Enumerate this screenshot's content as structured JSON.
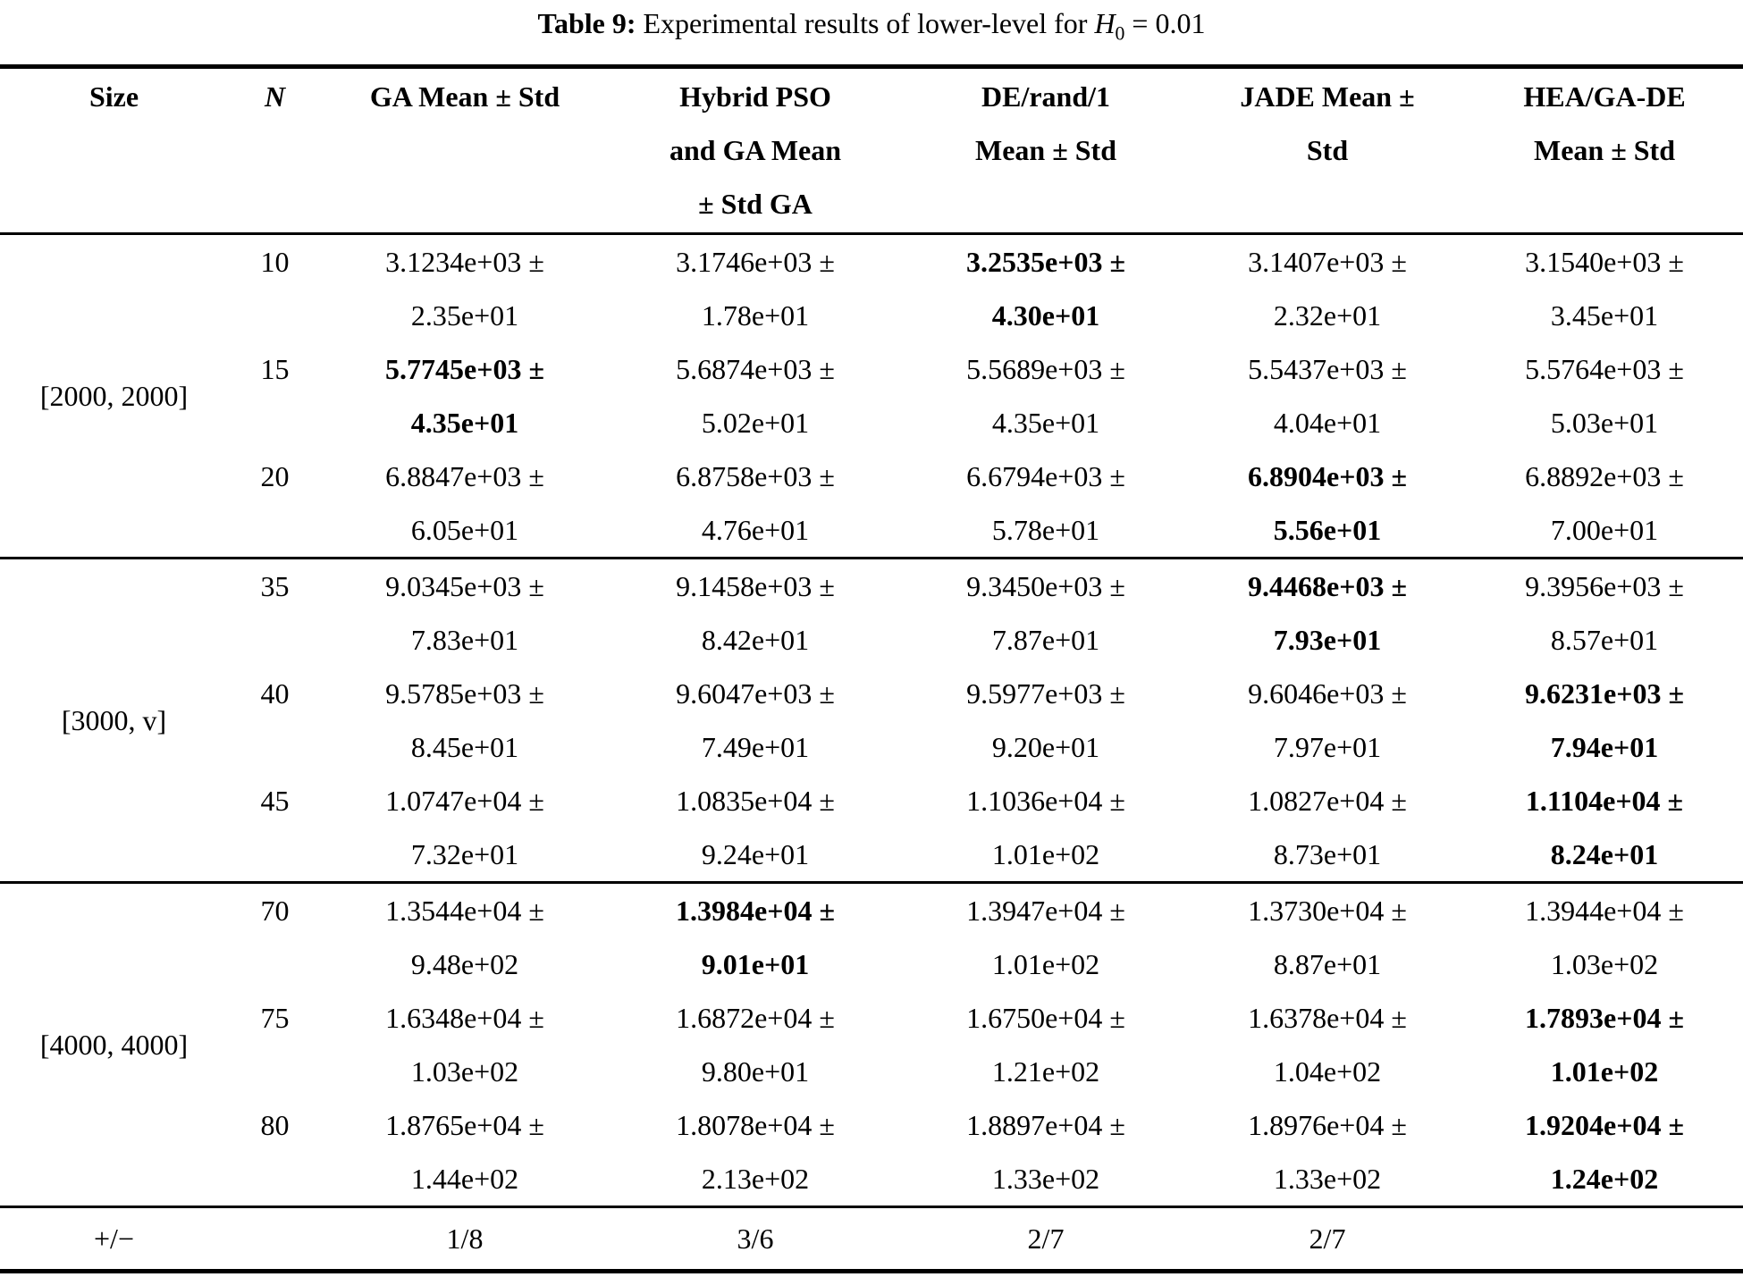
{
  "title": {
    "prefix": "Table 9: ",
    "body": "Experimental results of lower-level for ",
    "math_var": "H",
    "math_sub": "0",
    "suffix": " = 0.01"
  },
  "table": {
    "pm_symbol": "±",
    "columns": [
      {
        "key": "size",
        "lines": [
          "Size"
        ],
        "italic": false
      },
      {
        "key": "n",
        "lines": [
          "N"
        ],
        "italic": true
      },
      {
        "key": "ga",
        "lines": [
          "GA Mean ± Std"
        ],
        "italic": false
      },
      {
        "key": "hybrid-pso-ga",
        "lines": [
          "Hybrid PSO",
          "and GA Mean",
          "± Std GA"
        ],
        "italic": false
      },
      {
        "key": "de-rand-1",
        "lines": [
          "DE/rand/1",
          "Mean ± Std"
        ],
        "italic": false
      },
      {
        "key": "jade",
        "lines": [
          "JADE Mean ±",
          "Std"
        ],
        "italic": false
      },
      {
        "key": "hea-ga-de",
        "lines": [
          "HEA/GA-DE",
          "Mean ± Std"
        ],
        "italic": false
      }
    ],
    "groups": [
      {
        "size": "[2000, 2000]",
        "rows": [
          {
            "n": "10",
            "cells": [
              {
                "mean": "3.1234e+03",
                "std": "2.35e+01",
                "bold": false
              },
              {
                "mean": "3.1746e+03",
                "std": "1.78e+01",
                "bold": false
              },
              {
                "mean": "3.2535e+03",
                "std": "4.30e+01",
                "bold": true
              },
              {
                "mean": "3.1407e+03",
                "std": "2.32e+01",
                "bold": false
              },
              {
                "mean": "3.1540e+03",
                "std": "3.45e+01",
                "bold": false
              }
            ]
          },
          {
            "n": "15",
            "cells": [
              {
                "mean": "5.7745e+03",
                "std": "4.35e+01",
                "bold": true
              },
              {
                "mean": "5.6874e+03",
                "std": "5.02e+01",
                "bold": false
              },
              {
                "mean": "5.5689e+03",
                "std": "4.35e+01",
                "bold": false
              },
              {
                "mean": "5.5437e+03",
                "std": "4.04e+01",
                "bold": false
              },
              {
                "mean": "5.5764e+03",
                "std": "5.03e+01",
                "bold": false
              }
            ]
          },
          {
            "n": "20",
            "cells": [
              {
                "mean": "6.8847e+03",
                "std": "6.05e+01",
                "bold": false
              },
              {
                "mean": "6.8758e+03",
                "std": "4.76e+01",
                "bold": false
              },
              {
                "mean": "6.6794e+03",
                "std": "5.78e+01",
                "bold": false
              },
              {
                "mean": "6.8904e+03",
                "std": "5.56e+01",
                "bold": true
              },
              {
                "mean": "6.8892e+03",
                "std": "7.00e+01",
                "bold": false
              }
            ]
          }
        ]
      },
      {
        "size": "[3000, v]",
        "rows": [
          {
            "n": "35",
            "cells": [
              {
                "mean": "9.0345e+03",
                "std": "7.83e+01",
                "bold": false
              },
              {
                "mean": "9.1458e+03",
                "std": "8.42e+01",
                "bold": false
              },
              {
                "mean": "9.3450e+03",
                "std": "7.87e+01",
                "bold": false
              },
              {
                "mean": "9.4468e+03",
                "std": "7.93e+01",
                "bold": true
              },
              {
                "mean": "9.3956e+03",
                "std": "8.57e+01",
                "bold": false
              }
            ]
          },
          {
            "n": "40",
            "cells": [
              {
                "mean": "9.5785e+03",
                "std": "8.45e+01",
                "bold": false
              },
              {
                "mean": "9.6047e+03",
                "std": "7.49e+01",
                "bold": false
              },
              {
                "mean": "9.5977e+03",
                "std": "9.20e+01",
                "bold": false
              },
              {
                "mean": "9.6046e+03",
                "std": "7.97e+01",
                "bold": false
              },
              {
                "mean": "9.6231e+03",
                "std": "7.94e+01",
                "bold": true
              }
            ]
          },
          {
            "n": "45",
            "cells": [
              {
                "mean": "1.0747e+04",
                "std": "7.32e+01",
                "bold": false
              },
              {
                "mean": "1.0835e+04",
                "std": "9.24e+01",
                "bold": false
              },
              {
                "mean": "1.1036e+04",
                "std": "1.01e+02",
                "bold": false
              },
              {
                "mean": "1.0827e+04",
                "std": "8.73e+01",
                "bold": false
              },
              {
                "mean": "1.1104e+04",
                "std": "8.24e+01",
                "bold": true
              }
            ]
          }
        ]
      },
      {
        "size": "[4000, 4000]",
        "rows": [
          {
            "n": "70",
            "cells": [
              {
                "mean": "1.3544e+04",
                "std": "9.48e+02",
                "bold": false
              },
              {
                "mean": "1.3984e+04",
                "std": "9.01e+01",
                "bold": true
              },
              {
                "mean": "1.3947e+04",
                "std": "1.01e+02",
                "bold": false
              },
              {
                "mean": "1.3730e+04",
                "std": "8.87e+01",
                "bold": false
              },
              {
                "mean": "1.3944e+04",
                "std": "1.03e+02",
                "bold": false
              }
            ]
          },
          {
            "n": "75",
            "cells": [
              {
                "mean": "1.6348e+04",
                "std": "1.03e+02",
                "bold": false
              },
              {
                "mean": "1.6872e+04",
                "std": "9.80e+01",
                "bold": false
              },
              {
                "mean": "1.6750e+04",
                "std": "1.21e+02",
                "bold": false
              },
              {
                "mean": "1.6378e+04",
                "std": "1.04e+02",
                "bold": false
              },
              {
                "mean": "1.7893e+04",
                "std": "1.01e+02",
                "bold": true
              }
            ]
          },
          {
            "n": "80",
            "cells": [
              {
                "mean": "1.8765e+04",
                "std": "1.44e+02",
                "bold": false
              },
              {
                "mean": "1.8078e+04",
                "std": "2.13e+02",
                "bold": false
              },
              {
                "mean": "1.8897e+04",
                "std": "1.33e+02",
                "bold": false
              },
              {
                "mean": "1.8976e+04",
                "std": "1.33e+02",
                "bold": false
              },
              {
                "mean": "1.9204e+04",
                "std": "1.24e+02",
                "bold": true
              }
            ]
          }
        ]
      }
    ],
    "footer": {
      "label": "+/−",
      "values": [
        "1/8",
        "3/6",
        "2/7",
        "2/7",
        ""
      ]
    }
  }
}
